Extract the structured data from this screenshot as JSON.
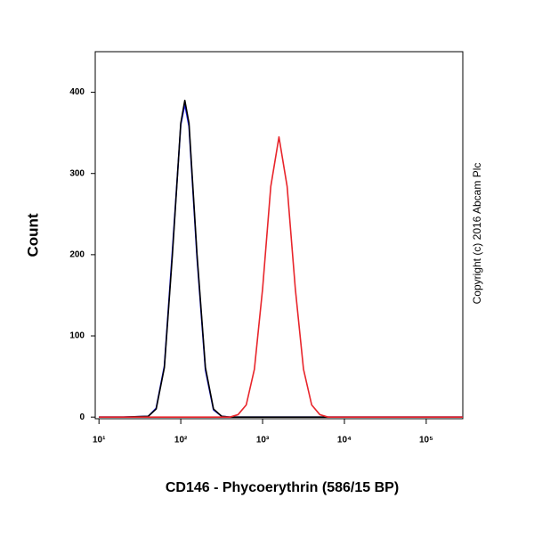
{
  "chart_data": {
    "type": "line",
    "x_label": "CD146 - Phycoerythrin (586/15 BP)",
    "y_label": "Count",
    "annotation": "Copyright (c) 2016 Abcam Plc",
    "x_scale": "log",
    "xlim": [
      9,
      280000
    ],
    "ylim": [
      -2,
      450
    ],
    "xticks": [
      {
        "value": 10,
        "label": "10¹"
      },
      {
        "value": 100,
        "label": "10²"
      },
      {
        "value": 1000,
        "label": "10³"
      },
      {
        "value": 10000,
        "label": "10⁴"
      },
      {
        "value": 100000,
        "label": "10⁵"
      }
    ],
    "yticks": [
      0,
      100,
      200,
      300,
      400
    ],
    "x": [
      10,
      20,
      40,
      50,
      63,
      79,
      100,
      112,
      126,
      158,
      200,
      251,
      316,
      398,
      501,
      631,
      794,
      1000,
      1259,
      1585,
      1995,
      2512,
      3162,
      3981,
      5012,
      6310,
      7943,
      10000,
      20000,
      100000,
      280000
    ],
    "series": [
      {
        "color": "#1a1aff",
        "values": [
          0,
          0,
          1,
          11,
          63,
          205,
          360,
          385,
          358,
          196,
          58,
          9,
          1,
          0,
          0,
          0,
          0,
          0,
          0,
          0,
          0,
          0,
          0,
          0,
          0,
          0,
          0,
          0,
          0,
          0,
          0
        ]
      },
      {
        "color": "#000000",
        "values": [
          0,
          0,
          1,
          10,
          61,
          200,
          362,
          390,
          362,
          200,
          61,
          10,
          1,
          0,
          0,
          0,
          0,
          0,
          0,
          0,
          0,
          0,
          0,
          0,
          0,
          0,
          0,
          0,
          0,
          0,
          0
        ]
      },
      {
        "color": "#e8252b",
        "values": [
          0,
          0,
          0,
          0,
          0,
          0,
          0,
          0,
          0,
          0,
          0,
          0,
          0,
          0,
          3,
          15,
          59,
          158,
          284,
          345,
          284,
          158,
          59,
          15,
          3,
          0,
          0,
          0,
          0,
          0,
          0
        ]
      }
    ]
  }
}
